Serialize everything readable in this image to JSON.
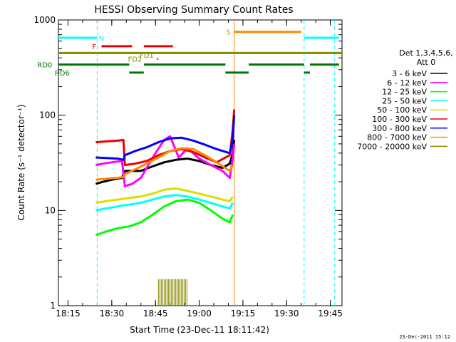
{
  "chart_data": {
    "type": "line",
    "title": "HESSI Observing Summary Count Rates",
    "xlabel": "Start Time (23-Dec-11 18:11:42)",
    "ylabel": "Count Rate (s⁻¹ detector⁻¹)",
    "y_scale": "log",
    "ylim": [
      1,
      1000
    ],
    "xlim": [
      "18:11:42",
      "19:49:00"
    ],
    "x_unit": "time (UT, 23-Dec-2011)",
    "x_ticks": [
      "18:15",
      "18:30",
      "18:45",
      "19:00",
      "19:15",
      "19:30",
      "19:45"
    ],
    "y_ticks": [
      "1",
      "10",
      "100",
      "1000"
    ],
    "grid": false,
    "legend_position": "right",
    "legend_header": [
      "Det 1,3,4,5,6,",
      "Att 0"
    ],
    "colors": {
      "3 - 6 keV": "#000000",
      "6 - 12 keV": "#ff00ff",
      "12 - 25 keV": "#00ff00",
      "25 - 50 keV": "#00ffff",
      "50 - 100 keV": "#dddd00",
      "100 - 300 keV": "#ee0000",
      "300 - 800 keV": "#0000ff",
      "800 - 7000 keV": "#ff8800",
      "7000 - 20000 keV": "#888800"
    },
    "series": [
      {
        "name": "3 - 6 keV",
        "x": [
          "18:24:30",
          "18:27:00",
          "18:30:00",
          "18:33:30",
          "18:34:30",
          "18:36:00",
          "18:40:00",
          "18:44:00",
          "18:48:00",
          "18:52:00",
          "18:56:00",
          "19:00:00",
          "19:04:00",
          "19:08:00",
          "19:10:30",
          "19:11:30",
          "19:12:00"
        ],
        "y": [
          19,
          20,
          21,
          22,
          26,
          26,
          26,
          29,
          32,
          34,
          35,
          33,
          30,
          28,
          31,
          40,
          55
        ]
      },
      {
        "name": "6 - 12 keV",
        "x": [
          "18:24:30",
          "18:27:00",
          "18:30:00",
          "18:33:30",
          "18:34:30",
          "18:37:00",
          "18:40:00",
          "18:42:00",
          "18:45:00",
          "18:48:00",
          "18:50:00",
          "18:53:00",
          "18:56:00",
          "19:00:00",
          "19:04:00",
          "19:08:00",
          "19:10:30",
          "19:11:30",
          "19:12:00"
        ],
        "y": [
          30,
          31,
          32,
          33,
          18,
          19,
          22,
          28,
          40,
          55,
          60,
          36,
          45,
          35,
          30,
          26,
          22,
          35,
          50
        ]
      },
      {
        "name": "12 - 25 keV",
        "x": [
          "18:24:30",
          "18:28:00",
          "18:32:00",
          "18:36:00",
          "18:40:00",
          "18:44:00",
          "18:48:00",
          "18:52:00",
          "18:56:00",
          "19:00:00",
          "19:04:00",
          "19:08:00",
          "19:10:30",
          "19:11:30"
        ],
        "y": [
          5.5,
          6,
          6.5,
          6.8,
          7.5,
          9,
          11,
          12.5,
          13,
          12,
          10,
          8.2,
          7.5,
          9
        ]
      },
      {
        "name": "25 - 50 keV",
        "x": [
          "18:24:30",
          "18:28:00",
          "18:32:00",
          "18:36:00",
          "18:40:00",
          "18:44:00",
          "18:48:00",
          "18:52:00",
          "18:56:00",
          "19:00:00",
          "19:04:00",
          "19:08:00",
          "19:10:30",
          "19:11:30"
        ],
        "y": [
          10,
          10.5,
          11,
          11.5,
          12,
          13,
          14,
          14.5,
          14,
          13,
          12,
          11,
          10.5,
          12
        ]
      },
      {
        "name": "50 - 100 keV",
        "x": [
          "18:24:30",
          "18:28:00",
          "18:32:00",
          "18:36:00",
          "18:40:00",
          "18:44:00",
          "18:48:00",
          "18:52:00",
          "18:56:00",
          "19:00:00",
          "19:04:00",
          "19:08:00",
          "19:10:30",
          "19:11:30"
        ],
        "y": [
          12,
          12.5,
          13,
          13.5,
          14,
          15,
          16.5,
          17,
          16,
          15,
          14,
          13,
          12.5,
          14
        ]
      },
      {
        "name": "100 - 300 keV",
        "x": [
          "18:24:30",
          "18:28:00",
          "18:32:00",
          "18:34:00",
          "18:34:30",
          "18:38:00",
          "18:42:00",
          "18:46:00",
          "18:50:00",
          "18:54:00",
          "18:58:00",
          "19:02:00",
          "19:06:00",
          "19:10:30",
          "19:11:30",
          "19:12:00"
        ],
        "y": [
          52,
          53,
          54,
          55,
          30,
          31,
          33,
          38,
          42,
          44,
          41,
          36,
          32,
          38,
          70,
          115
        ]
      },
      {
        "name": "300 - 800 keV",
        "x": [
          "18:24:30",
          "18:28:00",
          "18:32:00",
          "18:34:00",
          "18:34:30",
          "18:38:00",
          "18:42:00",
          "18:46:00",
          "18:50:00",
          "18:54:00",
          "18:58:00",
          "19:02:00",
          "19:06:00",
          "19:10:30",
          "19:11:30",
          "19:12:00"
        ],
        "y": [
          36,
          35.5,
          35,
          34,
          38,
          42,
          46,
          52,
          57,
          58,
          54,
          49,
          44,
          40,
          55,
          100
        ]
      },
      {
        "name": "800 - 7000 keV",
        "x": [
          "18:24:30",
          "18:28:00",
          "18:32:00",
          "18:34:00",
          "18:34:30",
          "18:38:00",
          "18:42:00",
          "18:46:00",
          "18:50:00",
          "18:54:00",
          "18:58:00",
          "19:02:00",
          "19:06:00",
          "19:10:30",
          "19:11:30"
        ],
        "y": [
          21,
          21.5,
          22,
          22.5,
          24,
          27,
          31,
          36,
          42,
          45,
          44,
          38,
          32,
          26,
          30
        ]
      },
      {
        "name": "7000 - 20000 keV",
        "x": [
          "18:46:00",
          "18:48:00",
          "18:50:00",
          "18:52:00",
          "18:54:00",
          "18:56:00"
        ],
        "y": [
          1.9,
          1.9,
          1.9,
          1.9,
          1.9,
          1.9
        ]
      }
    ],
    "flag_bars": [
      {
        "label": "N",
        "color": "#00ffff",
        "y": 650,
        "segments": [
          [
            "18:11:42",
            "18:25:00"
          ],
          [
            "19:36:00",
            "19:48:00"
          ]
        ],
        "label_at": "18:26:30"
      },
      {
        "label": "F",
        "color": "#ee0000",
        "y": 530,
        "segments": [
          [
            "18:26:30",
            "18:37:00"
          ],
          [
            "18:41:00",
            "18:51:00"
          ]
        ],
        "label_at": "18:24:00"
      },
      {
        "label": "S",
        "color": "#ff8800",
        "y": 750,
        "segments": [
          [
            "19:12:00",
            "19:35:00"
          ]
        ],
        "label_at": "19:10:00"
      },
      {
        "label": "",
        "color": "#888800",
        "y": 450,
        "segments": [
          [
            "18:11:42",
            "19:49:00"
          ]
        ],
        "label_at": null
      },
      {
        "label": "FD1",
        "color": "#888800",
        "y": 430,
        "segments": [],
        "label_at": "18:42:00"
      },
      {
        "label": "FD2",
        "color": "#888800",
        "y": 390,
        "segments": [
          [
            "18:45:30",
            "18:46:00"
          ]
        ],
        "label_at": "18:38:00"
      },
      {
        "label": "RD0",
        "color": "#007700",
        "y": 340,
        "segments": [
          [
            "18:11:42",
            "18:36:00"
          ],
          [
            "18:41:00",
            "19:09:00"
          ],
          [
            "19:17:00",
            "19:36:00"
          ],
          [
            "19:38:00",
            "19:48:00"
          ]
        ],
        "label_at": "18:07:00"
      },
      {
        "label": "RD6",
        "color": "#007700",
        "y": 280,
        "segments": [
          [
            "18:11:42",
            "18:12:00"
          ],
          [
            "18:36:00",
            "18:41:00"
          ],
          [
            "19:09:00",
            "19:17:00"
          ],
          [
            "19:36:00",
            "19:38:00"
          ]
        ],
        "label_at": "18:13:00"
      }
    ],
    "vertical_markers": [
      {
        "x": "18:25:00",
        "color": "#00ffff",
        "style": "dashed"
      },
      {
        "x": "19:12:00",
        "color": "#ff8800",
        "style": "solid"
      },
      {
        "x": "19:36:00",
        "color": "#00ffff",
        "style": "dashed"
      },
      {
        "x": "19:46:30",
        "color": "#00ffff",
        "style": "dashed"
      }
    ]
  },
  "footer_date": "23-Dec-2011 15:12"
}
